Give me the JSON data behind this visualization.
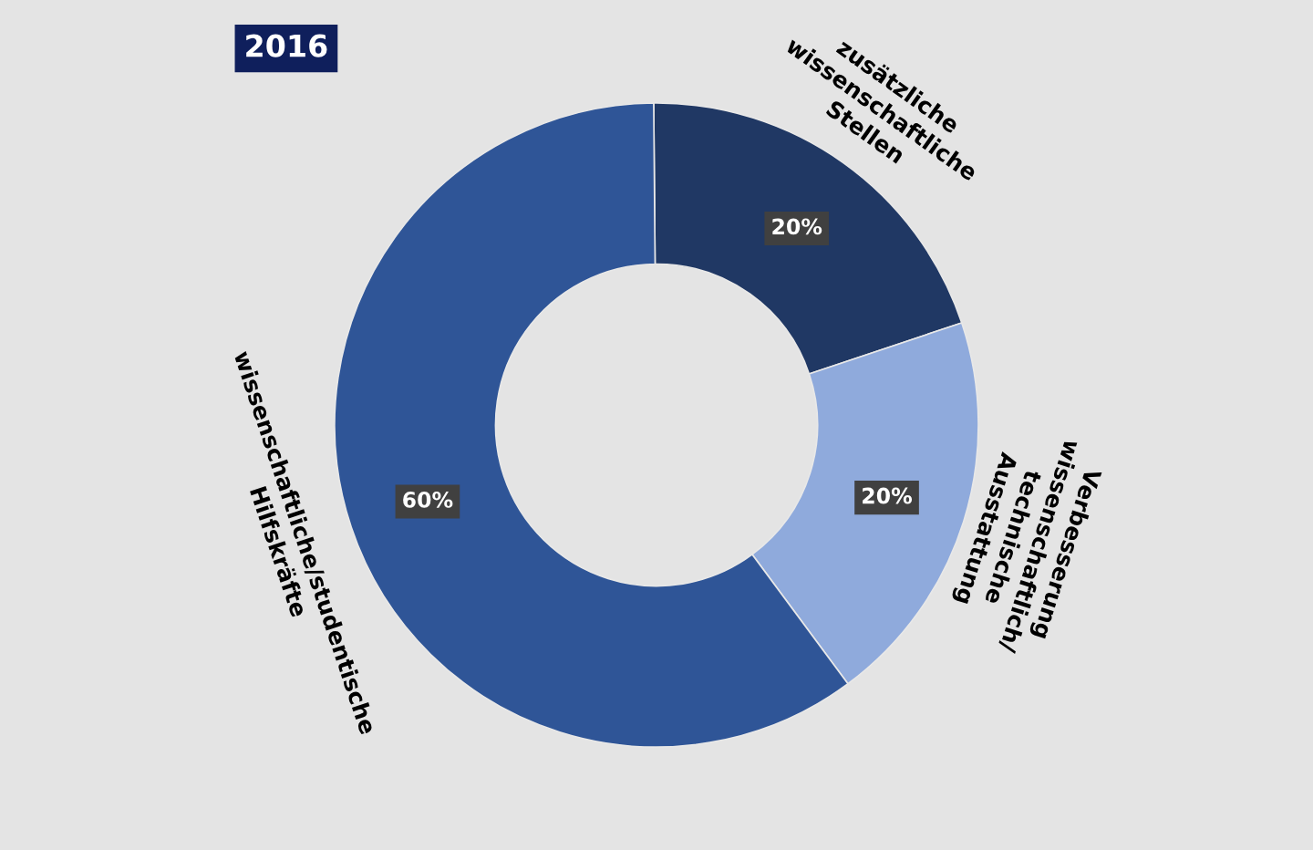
{
  "chart_data": {
    "type": "donut",
    "title": "2016",
    "categories": [
      "zusätzliche wissenschaftliche Stellen",
      "Verbesserung wissenschaftlich/ technische Ausstattung",
      "wissenschaftliche/studentische Hilfskräfte"
    ],
    "values": [
      20,
      20,
      60
    ],
    "colors": [
      "#203864",
      "#8faadc",
      "#2f5597"
    ],
    "value_labels": [
      "20%",
      "20%",
      "60%"
    ],
    "legend": false
  }
}
